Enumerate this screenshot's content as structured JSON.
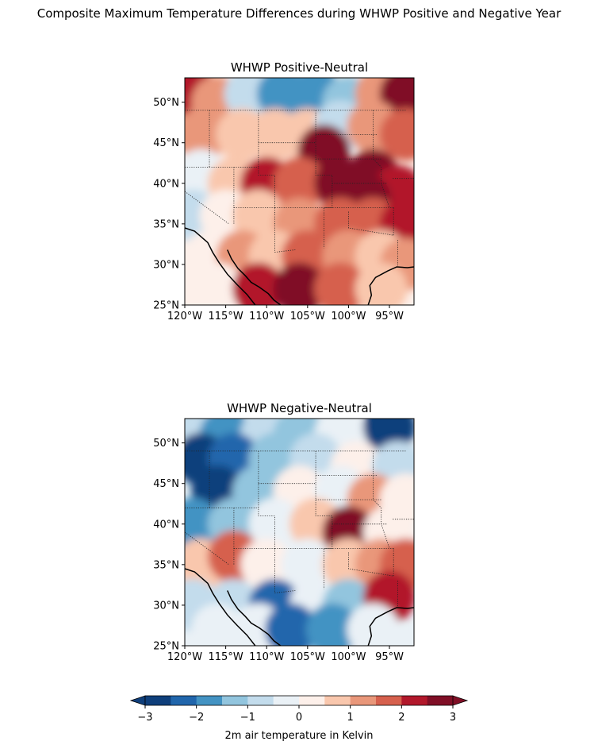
{
  "figure": {
    "title": "Composite Maximum Temperature Differences during WHWP Positive and Negative Year"
  },
  "chart_data": [
    {
      "type": "heatmap",
      "title": "WHWP Positive-Neutral",
      "xlim": [
        -120,
        -92
      ],
      "ylim": [
        25,
        53
      ],
      "x_ticks": [
        -120,
        -115,
        -110,
        -105,
        -100,
        -95
      ],
      "y_ticks": [
        25,
        30,
        35,
        40,
        45,
        50
      ],
      "x_tick_labels": [
        "120°W",
        "115°W",
        "110°W",
        "105°W",
        "100°W",
        "95°W"
      ],
      "y_tick_labels": [
        "25°N",
        "30°N",
        "35°N",
        "40°N",
        "45°N",
        "50°N"
      ],
      "field": [
        {
          "lon": -119,
          "lat": 51,
          "value": 2.4
        },
        {
          "lon": -116,
          "lat": 50,
          "value": 1.4
        },
        {
          "lon": -112,
          "lat": 51,
          "value": -0.6
        },
        {
          "lon": -108,
          "lat": 51,
          "value": -1.6
        },
        {
          "lon": -104,
          "lat": 51,
          "value": -1.9
        },
        {
          "lon": -100,
          "lat": 50,
          "value": -1.2
        },
        {
          "lon": -96,
          "lat": 51,
          "value": 1.2
        },
        {
          "lon": -93,
          "lat": 51,
          "value": 2.6
        },
        {
          "lon": -118,
          "lat": 46,
          "value": 1.1
        },
        {
          "lon": -113,
          "lat": 46,
          "value": 0.9
        },
        {
          "lon": -109,
          "lat": 46,
          "value": 0.5
        },
        {
          "lon": -105,
          "lat": 46,
          "value": 0.8
        },
        {
          "lon": -101,
          "lat": 47,
          "value": -0.7
        },
        {
          "lon": -97,
          "lat": 47,
          "value": 1.0
        },
        {
          "lon": -93,
          "lat": 46,
          "value": 1.8
        },
        {
          "lon": -103,
          "lat": 44,
          "value": 2.5
        },
        {
          "lon": -118,
          "lat": 41,
          "value": -0.2
        },
        {
          "lon": -114,
          "lat": 40,
          "value": 0.7
        },
        {
          "lon": -110,
          "lat": 40,
          "value": 2.4
        },
        {
          "lon": -106,
          "lat": 40,
          "value": 1.8
        },
        {
          "lon": -101,
          "lat": 40,
          "value": 2.8
        },
        {
          "lon": -97,
          "lat": 41,
          "value": 2.7
        },
        {
          "lon": -94,
          "lat": 39,
          "value": 2.2
        },
        {
          "lon": -98,
          "lat": 38,
          "value": 2.6
        },
        {
          "lon": -119,
          "lat": 36,
          "value": -0.6
        },
        {
          "lon": -115,
          "lat": 36,
          "value": 0.3
        },
        {
          "lon": -111,
          "lat": 36,
          "value": 0.8
        },
        {
          "lon": -106,
          "lat": 35,
          "value": 1.1
        },
        {
          "lon": -101,
          "lat": 35,
          "value": 1.6
        },
        {
          "lon": -97,
          "lat": 35,
          "value": 1.7
        },
        {
          "lon": -93,
          "lat": 35,
          "value": 2.2
        },
        {
          "lon": -117,
          "lat": 31,
          "value": 0.2
        },
        {
          "lon": -113,
          "lat": 31,
          "value": 1.4
        },
        {
          "lon": -109,
          "lat": 31,
          "value": 0.7
        },
        {
          "lon": -105,
          "lat": 31,
          "value": 1.6
        },
        {
          "lon": -100,
          "lat": 31,
          "value": 1.1
        },
        {
          "lon": -96,
          "lat": 31,
          "value": 0.9
        },
        {
          "lon": -93,
          "lat": 30,
          "value": 1.3
        },
        {
          "lon": -116,
          "lat": 27,
          "value": 0.4
        },
        {
          "lon": -111,
          "lat": 27,
          "value": 2.0
        },
        {
          "lon": -106,
          "lat": 27,
          "value": 2.9
        },
        {
          "lon": -101,
          "lat": 27,
          "value": 1.8
        },
        {
          "lon": -96,
          "lat": 27,
          "value": 0.6
        }
      ]
    },
    {
      "type": "heatmap",
      "title": "WHWP Negative-Neutral",
      "xlim": [
        -120,
        -92
      ],
      "ylim": [
        25,
        53
      ],
      "x_ticks": [
        -120,
        -115,
        -110,
        -105,
        -100,
        -95
      ],
      "y_ticks": [
        25,
        30,
        35,
        40,
        45,
        50
      ],
      "x_tick_labels": [
        "120°W",
        "115°W",
        "110°W",
        "105°W",
        "100°W",
        "95°W"
      ],
      "y_tick_labels": [
        "25°N",
        "30°N",
        "35°N",
        "40°N",
        "45°N",
        "50°N"
      ],
      "field": [
        {
          "lon": -119,
          "lat": 51,
          "value": -1.0
        },
        {
          "lon": -115,
          "lat": 51,
          "value": -1.8
        },
        {
          "lon": -110,
          "lat": 51,
          "value": -0.7
        },
        {
          "lon": -106,
          "lat": 51,
          "value": -1.3
        },
        {
          "lon": -101,
          "lat": 51,
          "value": -0.4
        },
        {
          "lon": -95,
          "lat": 52,
          "value": -2.9
        },
        {
          "lon": -118,
          "lat": 48,
          "value": -2.6
        },
        {
          "lon": -114,
          "lat": 48,
          "value": -2.2
        },
        {
          "lon": -109,
          "lat": 48,
          "value": -1.1
        },
        {
          "lon": -104,
          "lat": 48,
          "value": -0.6
        },
        {
          "lon": -99,
          "lat": 47,
          "value": 0.2
        },
        {
          "lon": -94,
          "lat": 47,
          "value": -0.8
        },
        {
          "lon": -116,
          "lat": 44,
          "value": -2.9
        },
        {
          "lon": -111,
          "lat": 44,
          "value": -1.4
        },
        {
          "lon": -106,
          "lat": 44,
          "value": 0.4
        },
        {
          "lon": -101,
          "lat": 44,
          "value": -0.3
        },
        {
          "lon": -97,
          "lat": 43,
          "value": 1.4
        },
        {
          "lon": -93,
          "lat": 43,
          "value": 0.4
        },
        {
          "lon": -119,
          "lat": 40,
          "value": -1.6
        },
        {
          "lon": -114,
          "lat": 40,
          "value": -1.2
        },
        {
          "lon": -109,
          "lat": 40,
          "value": -0.4
        },
        {
          "lon": -104,
          "lat": 40,
          "value": 0.9
        },
        {
          "lon": -100,
          "lat": 39,
          "value": 2.7
        },
        {
          "lon": -95,
          "lat": 39,
          "value": 0.3
        },
        {
          "lon": -118,
          "lat": 35,
          "value": 0.7
        },
        {
          "lon": -114,
          "lat": 36,
          "value": 1.5
        },
        {
          "lon": -110,
          "lat": 35,
          "value": 0.3
        },
        {
          "lon": -105,
          "lat": 35,
          "value": -0.2
        },
        {
          "lon": -100,
          "lat": 35,
          "value": 0.5
        },
        {
          "lon": -96,
          "lat": 35,
          "value": 1.0
        },
        {
          "lon": -93,
          "lat": 35,
          "value": 1.6
        },
        {
          "lon": -119,
          "lat": 30,
          "value": -0.6
        },
        {
          "lon": -114,
          "lat": 30,
          "value": -1.0
        },
        {
          "lon": -109,
          "lat": 30,
          "value": -2.1
        },
        {
          "lon": -104,
          "lat": 30,
          "value": -0.5
        },
        {
          "lon": -100,
          "lat": 30,
          "value": -1.4
        },
        {
          "lon": -95,
          "lat": 31,
          "value": 2.2
        },
        {
          "lon": -116,
          "lat": 27,
          "value": -0.3
        },
        {
          "lon": -111,
          "lat": 27,
          "value": -0.5
        },
        {
          "lon": -107,
          "lat": 27,
          "value": -2.3
        },
        {
          "lon": -102,
          "lat": 27,
          "value": -1.6
        },
        {
          "lon": -97,
          "lat": 27,
          "value": -0.2
        }
      ]
    }
  ],
  "colorbar": {
    "label": "2m air temperature in Kelvin",
    "vmin": -3,
    "vmax": 3,
    "levels": [
      -3,
      -2.5,
      -2,
      -1.5,
      -1,
      -0.5,
      0,
      0.5,
      1,
      1.5,
      2,
      2.5,
      3
    ],
    "tick_values": [
      -3,
      -2,
      -1,
      0,
      1,
      2,
      3
    ],
    "tick_labels": [
      "−3",
      "−2",
      "−1",
      "0",
      "1",
      "2",
      "3"
    ],
    "colors": [
      "#0f3f7b",
      "#2166ac",
      "#4393c3",
      "#92c5de",
      "#c3dcec",
      "#eaf1f6",
      "#fdf0ea",
      "#f9c7ad",
      "#e9977a",
      "#d6604d",
      "#b2182b",
      "#800f26"
    ],
    "extend": "both"
  }
}
